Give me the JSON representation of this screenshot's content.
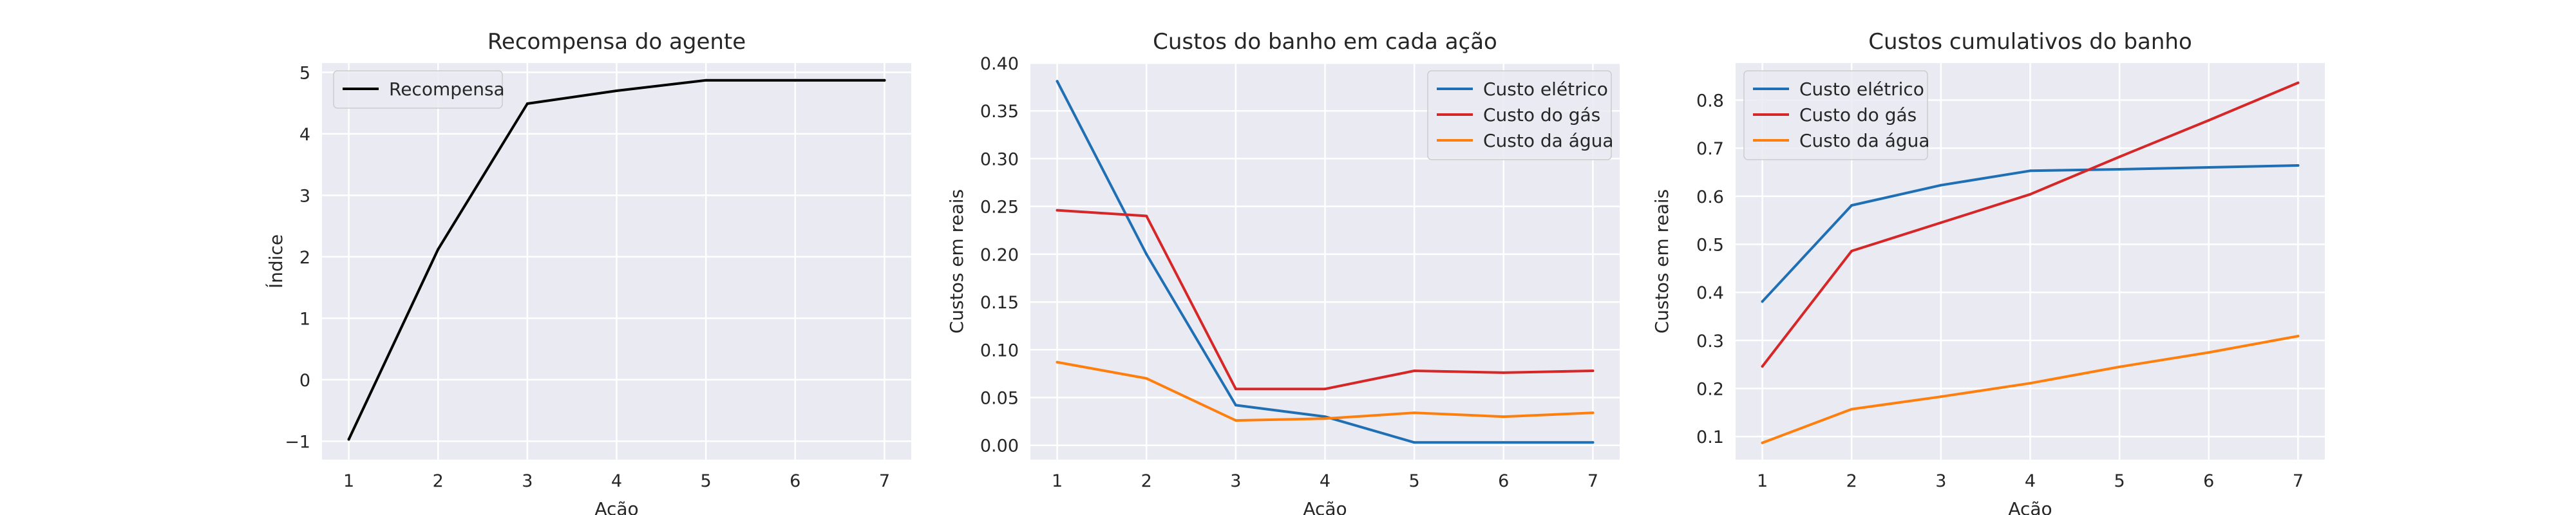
{
  "chart_data": [
    {
      "type": "line",
      "title": "Recompensa do agente",
      "xlabel": "Ação",
      "ylabel": "Índice",
      "x": [
        1,
        2,
        3,
        4,
        5,
        6,
        7
      ],
      "xticks": [
        1,
        2,
        3,
        4,
        5,
        6,
        7
      ],
      "xtick_labels": [
        "1",
        "2",
        "3",
        "4",
        "5",
        "6",
        "7"
      ],
      "yticks": [
        -1,
        0,
        1,
        2,
        3,
        4,
        5
      ],
      "ytick_labels": [
        "−1",
        "0",
        "1",
        "2",
        "3",
        "4",
        "5"
      ],
      "xlim": [
        0.7,
        7.3
      ],
      "ylim": [
        -1.3,
        5.15
      ],
      "grid": true,
      "legend": "upper left",
      "series": [
        {
          "name": "Recompensa",
          "color": "#000000",
          "values": [
            -0.97,
            2.12,
            4.49,
            4.7,
            4.87,
            4.87,
            4.87
          ]
        }
      ]
    },
    {
      "type": "line",
      "title": "Custos do banho em cada ação",
      "xlabel": "Ação",
      "ylabel": "Custos em reais",
      "x": [
        1,
        2,
        3,
        4,
        5,
        6,
        7
      ],
      "xticks": [
        1,
        2,
        3,
        4,
        5,
        6,
        7
      ],
      "xtick_labels": [
        "1",
        "2",
        "3",
        "4",
        "5",
        "6",
        "7"
      ],
      "yticks": [
        0,
        0.05,
        0.1,
        0.15,
        0.2,
        0.25,
        0.3,
        0.35,
        0.4
      ],
      "ytick_labels": [
        "0.00",
        "0.05",
        "0.10",
        "0.15",
        "0.20",
        "0.25",
        "0.30",
        "0.35",
        "0.40"
      ],
      "xlim": [
        0.7,
        7.3
      ],
      "ylim": [
        -0.015,
        0.4
      ],
      "grid": true,
      "legend": "upper right",
      "series": [
        {
          "name": "Custo elétrico",
          "color": "#1f6fb4",
          "values": [
            0.381,
            0.2,
            0.042,
            0.03,
            0.003,
            0.003,
            0.003
          ]
        },
        {
          "name": "Custo do gás",
          "color": "#d62728",
          "values": [
            0.246,
            0.24,
            0.059,
            0.059,
            0.078,
            0.076,
            0.078
          ]
        },
        {
          "name": "Custo da água",
          "color": "#ff7f0e",
          "values": [
            0.087,
            0.07,
            0.026,
            0.028,
            0.034,
            0.03,
            0.034
          ]
        }
      ]
    },
    {
      "type": "line",
      "title": "Custos cumulativos do banho",
      "xlabel": "Ação",
      "ylabel": "Custos em reais",
      "x": [
        1,
        2,
        3,
        4,
        5,
        6,
        7
      ],
      "xticks": [
        1,
        2,
        3,
        4,
        5,
        6,
        7
      ],
      "xtick_labels": [
        "1",
        "2",
        "3",
        "4",
        "5",
        "6",
        "7"
      ],
      "yticks": [
        0.1,
        0.2,
        0.3,
        0.4,
        0.5,
        0.6,
        0.7,
        0.8
      ],
      "ytick_labels": [
        "0.1",
        "0.2",
        "0.3",
        "0.4",
        "0.5",
        "0.6",
        "0.7",
        "0.8"
      ],
      "xlim": [
        0.7,
        7.3
      ],
      "ylim": [
        0.052,
        0.877
      ],
      "grid": true,
      "legend": "upper left",
      "series": [
        {
          "name": "Custo elétrico",
          "color": "#1f6fb4",
          "values": [
            0.381,
            0.581,
            0.623,
            0.653,
            0.656,
            0.66,
            0.664
          ]
        },
        {
          "name": "Custo do gás",
          "color": "#d62728",
          "values": [
            0.246,
            0.486,
            0.545,
            0.604,
            0.682,
            0.758,
            0.836
          ]
        },
        {
          "name": "Custo da água",
          "color": "#ff7f0e",
          "values": [
            0.087,
            0.157,
            0.183,
            0.211,
            0.245,
            0.275,
            0.309
          ]
        }
      ]
    }
  ]
}
